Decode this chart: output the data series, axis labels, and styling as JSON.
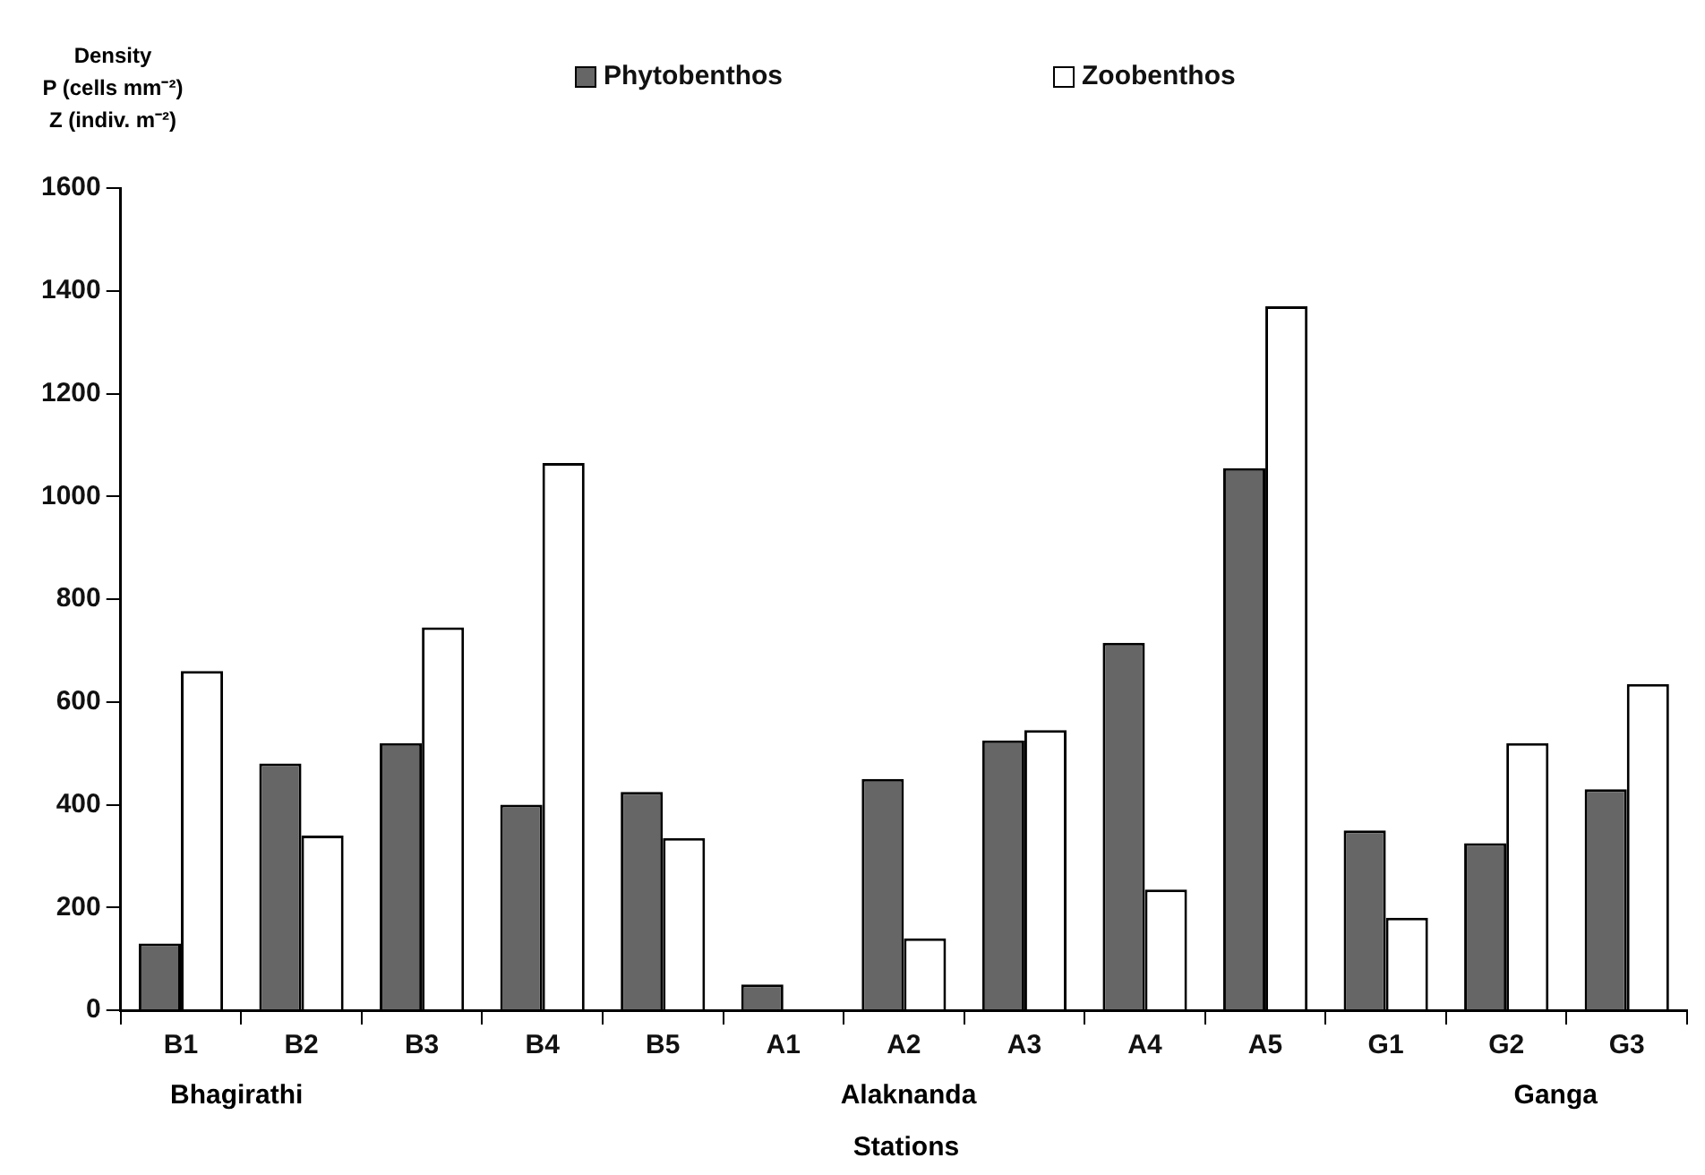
{
  "chart_data": {
    "type": "bar",
    "ylabel": "Density\nP (cells mm⁻²)\nZ (indiv. m⁻²)",
    "xlabel": "Stations",
    "categories": [
      "B1",
      "B2",
      "B3",
      "B4",
      "B5",
      "A1",
      "A2",
      "A3",
      "A4",
      "A5",
      "G1",
      "G2",
      "G3"
    ],
    "series": [
      {
        "name": "Phytobenthos",
        "color": "#666666",
        "values": [
          130,
          480,
          520,
          400,
          425,
          50,
          450,
          525,
          715,
          1055,
          350,
          325,
          430
        ]
      },
      {
        "name": "Zoobenthos",
        "color": "#ffffff",
        "values": [
          660,
          340,
          745,
          1065,
          335,
          0,
          140,
          545,
          235,
          1370,
          180,
          520,
          635
        ]
      }
    ],
    "ylim": [
      0,
      1600
    ],
    "yticks": [
      0,
      200,
      400,
      600,
      800,
      1000,
      1200,
      1400,
      1600
    ],
    "grid": false,
    "legend": "top",
    "annotations": [
      "Bhagirathi",
      "Alaknanda",
      "Ganga"
    ]
  }
}
